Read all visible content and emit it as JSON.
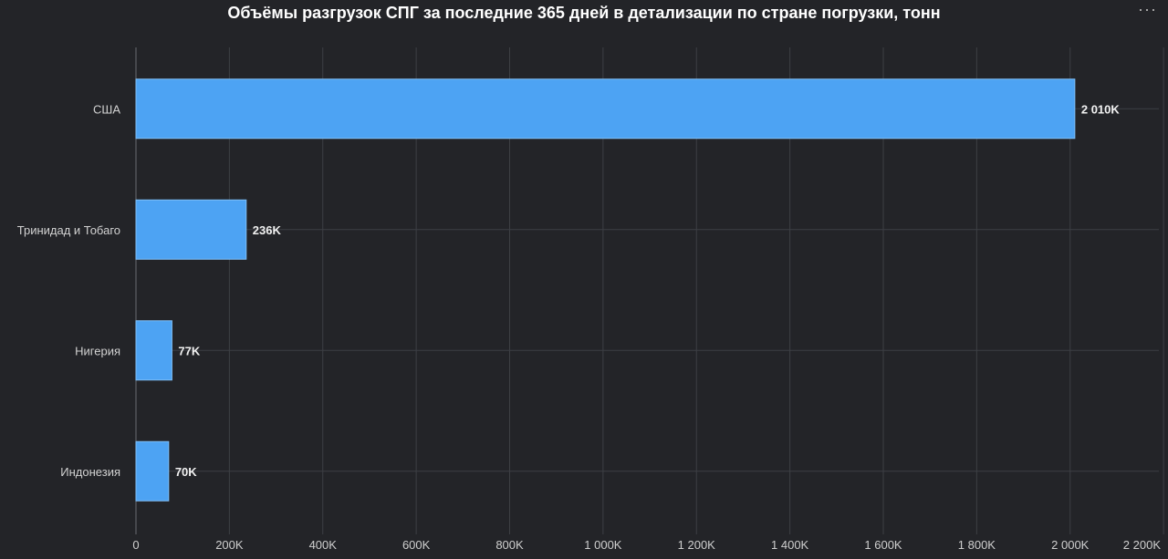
{
  "header": {
    "menu_label": "···"
  },
  "chart_data": {
    "type": "bar",
    "orientation": "horizontal",
    "title": "Объёмы разгрузок СПГ за последние 365 дней в детализации по стране погрузки, тонн",
    "categories": [
      "США",
      "Тринидад и Тобаго",
      "Нигерия",
      "Индонезия"
    ],
    "values": [
      2010000,
      236000,
      77000,
      70000
    ],
    "data_labels": [
      "2 010K",
      "236K",
      "77K",
      "70K"
    ],
    "xlim": [
      0,
      2200000
    ],
    "x_ticks": [
      0,
      200000,
      400000,
      600000,
      800000,
      1000000,
      1200000,
      1400000,
      1600000,
      1800000,
      2000000,
      2200000
    ],
    "x_tick_labels": [
      "0",
      "200K",
      "400K",
      "600K",
      "800K",
      "1 000K",
      "1 200K",
      "1 400K",
      "1 600K",
      "1 800K",
      "2 000K",
      "2 200K"
    ],
    "grid": true,
    "colors": {
      "bar": "#4da3f3",
      "bar_border": "#7fbff7",
      "grid": "#3d3f44",
      "background": "#232428"
    }
  }
}
